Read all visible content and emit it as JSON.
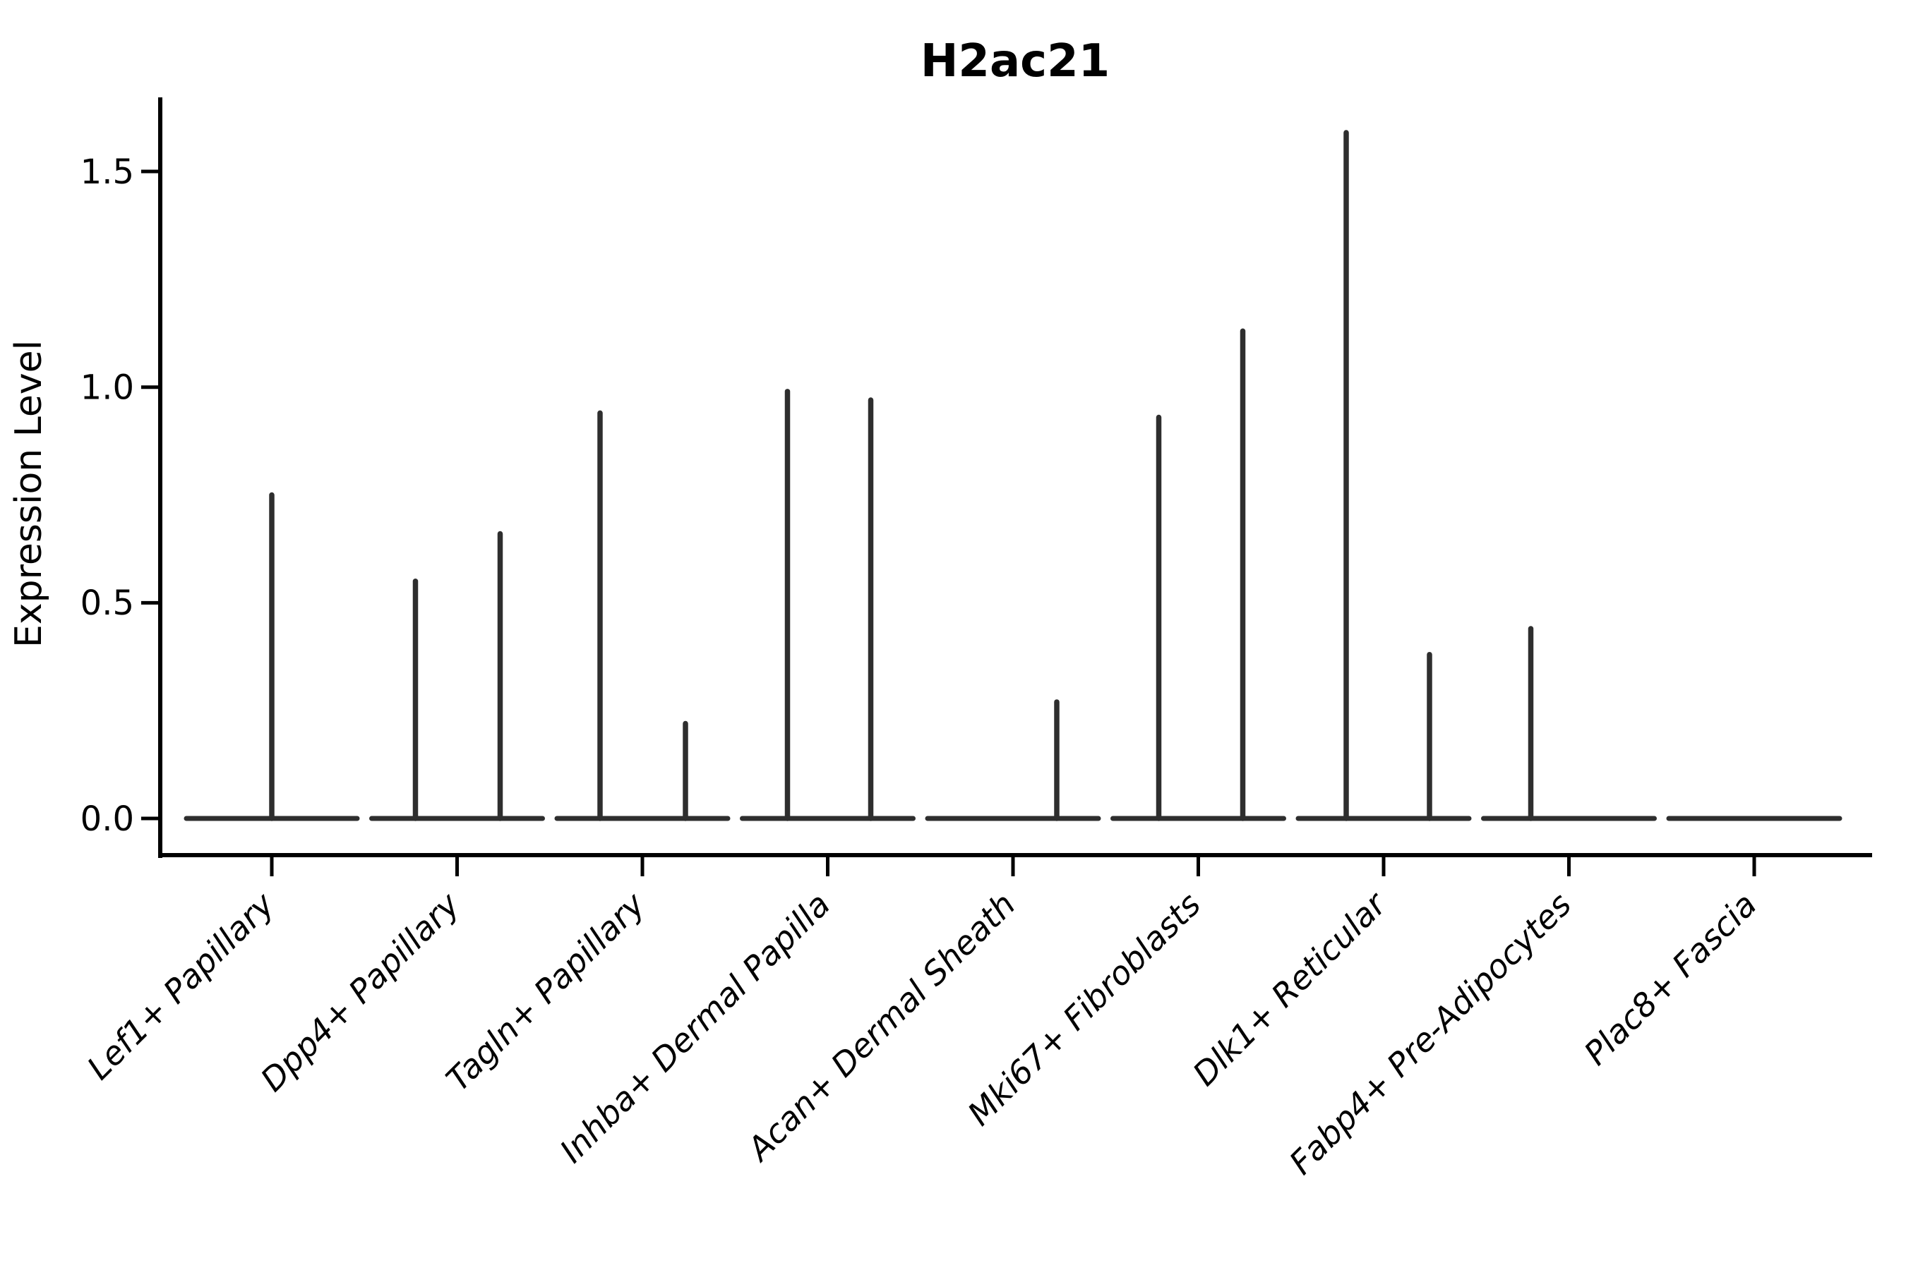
{
  "title": "H2ac21",
  "colors": {
    "violin": "#2e2e2e",
    "axis": "#000000",
    "background": "#ffffff"
  },
  "chart_data": {
    "type": "violin",
    "title": "H2ac21",
    "xlabel": "",
    "ylabel": "Expression Level",
    "ylim": [
      -0.09,
      1.67
    ],
    "grid": false,
    "legend": "none",
    "y_ticks": [
      {
        "label": "0.0",
        "value": 0.0
      },
      {
        "label": "0.5",
        "value": 0.5
      },
      {
        "label": "1.0",
        "value": 1.0
      },
      {
        "label": "1.5",
        "value": 1.5
      }
    ],
    "categories": [
      "Lef1+ Papillary",
      "Dpp4+ Papillary",
      "Tagln+ Papillary",
      "Inhba+ Dermal Papilla",
      "Acan+ Dermal Sheath",
      "Mki67+ Fibroblasts",
      "Dlk1+ Reticular",
      "Fabp4+ Pre-Adipocytes",
      "Plac8+ Fascia"
    ],
    "series": [
      {
        "name": "Lef1+ Papillary",
        "baseline_value": 0.0,
        "spikes": [
          {
            "dx": 0,
            "max": 0.75
          }
        ]
      },
      {
        "name": "Dpp4+ Papillary",
        "baseline_value": 0.0,
        "spikes": [
          {
            "dx": -59,
            "max": 0.55
          },
          {
            "dx": 61,
            "max": 0.66
          }
        ]
      },
      {
        "name": "Tagln+ Papillary",
        "baseline_value": 0.0,
        "spikes": [
          {
            "dx": -60,
            "max": 0.94
          },
          {
            "dx": 61,
            "max": 0.22
          }
        ]
      },
      {
        "name": "Inhba+ Dermal Papilla",
        "baseline_value": 0.0,
        "spikes": [
          {
            "dx": -57,
            "max": 0.99
          },
          {
            "dx": 61,
            "max": 0.97
          }
        ]
      },
      {
        "name": "Acan+ Dermal Sheath",
        "baseline_value": 0.0,
        "spikes": [
          {
            "dx": 62,
            "max": 0.27
          }
        ]
      },
      {
        "name": "Mki67+ Fibroblasts",
        "baseline_value": 0.0,
        "spikes": [
          {
            "dx": -56,
            "max": 0.93
          },
          {
            "dx": 63,
            "max": 1.13
          }
        ]
      },
      {
        "name": "Dlk1+ Reticular",
        "baseline_value": 0.0,
        "spikes": [
          {
            "dx": -53,
            "max": 1.59
          },
          {
            "dx": 65,
            "max": 0.38
          }
        ]
      },
      {
        "name": "Fabp4+ Pre-Adipocytes",
        "baseline_value": 0.0,
        "spikes": [
          {
            "dx": -54,
            "max": 0.44
          }
        ]
      },
      {
        "name": "Plac8+ Fascia",
        "baseline_value": 0.0,
        "spikes": []
      }
    ]
  }
}
